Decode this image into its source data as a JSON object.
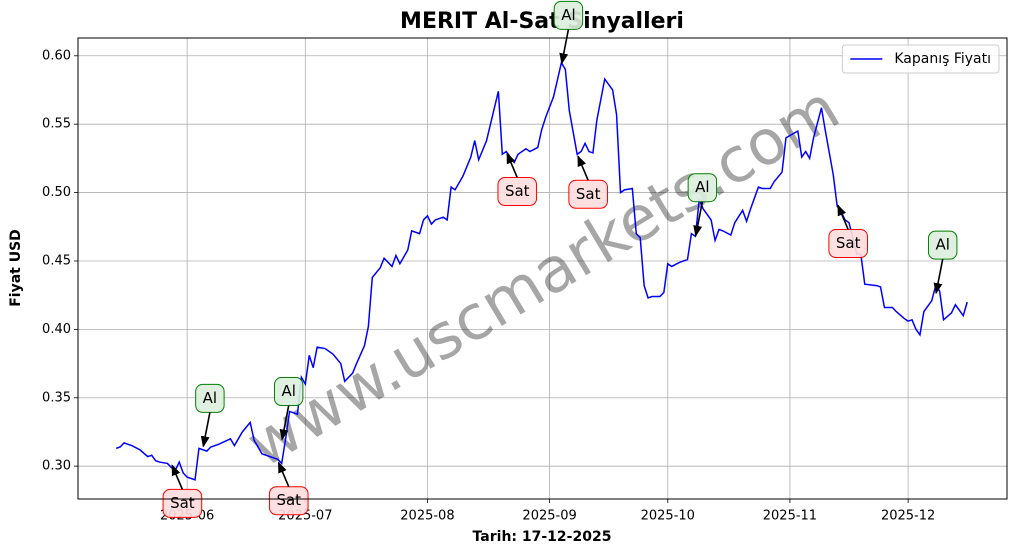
{
  "chart_data": {
    "type": "line",
    "title": "MERIT Al-Sat Sinyalleri",
    "xlabel": "Tarih: 17-12-2025",
    "ylabel": "Fiyat USD",
    "watermark": "www.uscmarkets.com",
    "legend": "upper right",
    "grid": true,
    "xlim": [
      123.3,
      359.1
    ],
    "ylim": [
      0.276,
      0.613
    ],
    "xticks": [
      {
        "value": 151,
        "label": "2025-06"
      },
      {
        "value": 181,
        "label": "2025-07"
      },
      {
        "value": 212,
        "label": "2025-08"
      },
      {
        "value": 243,
        "label": "2025-09"
      },
      {
        "value": 273,
        "label": "2025-10"
      },
      {
        "value": 304,
        "label": "2025-11"
      },
      {
        "value": 334,
        "label": "2025-12"
      }
    ],
    "yticks": [
      {
        "value": 0.3,
        "label": "0.30"
      },
      0.35,
      {
        "value": 0.4,
        "label": "0.40"
      },
      0.45,
      {
        "value": 0.5,
        "label": "0.50"
      },
      0.55,
      {
        "value": 0.6,
        "label": "0.60"
      }
    ],
    "x": [
      133,
      134,
      135,
      137,
      139,
      141,
      142,
      143,
      144,
      146,
      147,
      148,
      149,
      150,
      151,
      153,
      154,
      156,
      157,
      159,
      162,
      163,
      165,
      167,
      168,
      170,
      172,
      174,
      175,
      176,
      177,
      179,
      180,
      181,
      182,
      183,
      184,
      186,
      188,
      190,
      191,
      193,
      194,
      196,
      197,
      198,
      200,
      201,
      203,
      204,
      205,
      207,
      208,
      210,
      211,
      212,
      213,
      214,
      216,
      217,
      218,
      219,
      221,
      223,
      224,
      225,
      227,
      228,
      230,
      231,
      232,
      234,
      235,
      237,
      238,
      240,
      241,
      242,
      244,
      246,
      247,
      248,
      250,
      251,
      252,
      253,
      254,
      255,
      257,
      259,
      260,
      261,
      262,
      264,
      265,
      266,
      267,
      268,
      269,
      271,
      272,
      273,
      274,
      276,
      278,
      279,
      280,
      281,
      282,
      284,
      285,
      286,
      287,
      289,
      290,
      292,
      293,
      294,
      296,
      297,
      299,
      300,
      302,
      303,
      306,
      307,
      308,
      309,
      310,
      312,
      313,
      315,
      316,
      317,
      318,
      319,
      321,
      322,
      323,
      326,
      327,
      328,
      330,
      331,
      333,
      334,
      335,
      336,
      337,
      338,
      340,
      341,
      342,
      343,
      345,
      346,
      348,
      349
    ],
    "series": [
      {
        "name": "Kapanış Fiyatı",
        "color": "#0000ff",
        "values": [
          0.313,
          0.314,
          0.317,
          0.315,
          0.312,
          0.307,
          0.308,
          0.304,
          0.303,
          0.302,
          0.299,
          0.297,
          0.303,
          0.295,
          0.292,
          0.29,
          0.313,
          0.311,
          0.314,
          0.316,
          0.32,
          0.315,
          0.325,
          0.332,
          0.319,
          0.309,
          0.307,
          0.305,
          0.302,
          0.32,
          0.34,
          0.338,
          0.365,
          0.36,
          0.381,
          0.372,
          0.387,
          0.386,
          0.382,
          0.375,
          0.362,
          0.368,
          0.375,
          0.388,
          0.402,
          0.438,
          0.445,
          0.452,
          0.446,
          0.454,
          0.448,
          0.458,
          0.472,
          0.47,
          0.48,
          0.483,
          0.477,
          0.48,
          0.482,
          0.48,
          0.504,
          0.502,
          0.512,
          0.526,
          0.538,
          0.524,
          0.538,
          0.55,
          0.574,
          0.528,
          0.53,
          0.522,
          0.528,
          0.532,
          0.53,
          0.533,
          0.546,
          0.555,
          0.57,
          0.595,
          0.59,
          0.56,
          0.528,
          0.53,
          0.536,
          0.53,
          0.529,
          0.553,
          0.583,
          0.575,
          0.557,
          0.5,
          0.502,
          0.503,
          0.47,
          0.467,
          0.432,
          0.423,
          0.424,
          0.424,
          0.427,
          0.448,
          0.446,
          0.449,
          0.451,
          0.47,
          0.468,
          0.495,
          0.488,
          0.48,
          0.465,
          0.473,
          0.472,
          0.469,
          0.478,
          0.487,
          0.479,
          0.488,
          0.504,
          0.503,
          0.503,
          0.508,
          0.515,
          0.54,
          0.545,
          0.526,
          0.53,
          0.525,
          0.54,
          0.562,
          0.545,
          0.513,
          0.49,
          0.486,
          0.48,
          0.478,
          0.455,
          0.455,
          0.433,
          0.432,
          0.431,
          0.416,
          0.416,
          0.413,
          0.408,
          0.406,
          0.407,
          0.4,
          0.396,
          0.413,
          0.421,
          0.432,
          0.428,
          0.407,
          0.412,
          0.418,
          0.41,
          0.42
        ]
      }
    ],
    "annotations": [
      {
        "text": "Sat",
        "x": 147,
        "y": 0.302,
        "color": "red",
        "placement": "below"
      },
      {
        "text": "Al",
        "x": 155,
        "y": 0.313,
        "color": "green",
        "placement": "above"
      },
      {
        "text": "Sat",
        "x": 174,
        "y": 0.304,
        "color": "red",
        "placement": "below"
      },
      {
        "text": "Al",
        "x": 175,
        "y": 0.318,
        "color": "green",
        "placement": "above"
      },
      {
        "text": "Sat",
        "x": 232,
        "y": 0.53,
        "color": "red",
        "placement": "below"
      },
      {
        "text": "Al",
        "x": 246,
        "y": 0.593,
        "color": "green",
        "placement": "above"
      },
      {
        "text": "Sat",
        "x": 250,
        "y": 0.528,
        "color": "red",
        "placement": "below"
      },
      {
        "text": "Al",
        "x": 280,
        "y": 0.467,
        "color": "green",
        "placement": "above"
      },
      {
        "text": "Sat",
        "x": 316,
        "y": 0.492,
        "color": "red",
        "placement": "below"
      },
      {
        "text": "Al",
        "x": 341,
        "y": 0.425,
        "color": "green",
        "placement": "above"
      }
    ]
  }
}
